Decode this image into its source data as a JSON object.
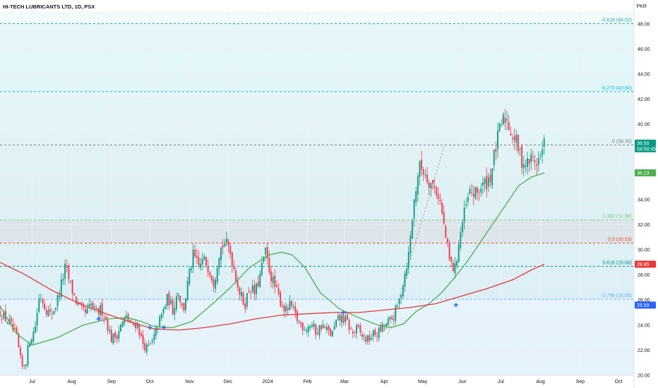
{
  "header": {
    "symbol_title": "HI-TECH LUBRICANTS LTD, 1D, PSX",
    "currency": "PKR"
  },
  "chart_data": {
    "type": "candlestick",
    "symbol": "HI-TECH LUBRICANTS LTD",
    "interval": "1D",
    "exchange": "PSX",
    "currency": "PKR",
    "ylim": [
      20,
      49
    ],
    "y_ticks": [
      "20.00",
      "22.00",
      "24.00",
      "26.00",
      "28.00",
      "30.00",
      "32.00",
      "34.00",
      "36.00",
      "38.00",
      "40.00",
      "42.00",
      "44.00",
      "46.00",
      "48.00"
    ],
    "x_ticks": [
      {
        "label": "Jul",
        "t": 0
      },
      {
        "label": "Aug",
        "t": 31
      },
      {
        "label": "Sep",
        "t": 62
      },
      {
        "label": "Oct",
        "t": 92
      },
      {
        "label": "Nov",
        "t": 123
      },
      {
        "label": "Dec",
        "t": 153
      },
      {
        "label": "2024",
        "t": 184
      },
      {
        "label": "Feb",
        "t": 215
      },
      {
        "label": "Mar",
        "t": 244
      },
      {
        "label": "Apr",
        "t": 275
      },
      {
        "label": "May",
        "t": 305
      },
      {
        "label": "Jun",
        "t": 336
      },
      {
        "label": "Jul",
        "t": 366
      },
      {
        "label": "Aug",
        "t": 397
      },
      {
        "label": "Sep",
        "t": 428
      },
      {
        "label": "Oct",
        "t": 458
      }
    ],
    "t_range": [
      -25,
      470
    ],
    "price_anchors": [
      [
        -25,
        25.0
      ],
      [
        -18,
        24.2
      ],
      [
        -12,
        23.0
      ],
      [
        -8,
        20.6
      ],
      [
        -5,
        21.0
      ],
      [
        -2,
        22.8
      ],
      [
        2,
        23.6
      ],
      [
        6,
        26.5
      ],
      [
        10,
        25.5
      ],
      [
        14,
        24.8
      ],
      [
        18,
        25.4
      ],
      [
        22,
        26.9
      ],
      [
        26,
        28.6
      ],
      [
        30,
        27.2
      ],
      [
        34,
        26.0
      ],
      [
        38,
        25.2
      ],
      [
        42,
        24.9
      ],
      [
        46,
        25.6
      ],
      [
        50,
        24.9
      ],
      [
        54,
        25.3
      ],
      [
        58,
        24.4
      ],
      [
        62,
        22.9
      ],
      [
        66,
        23.2
      ],
      [
        70,
        24.1
      ],
      [
        74,
        24.6
      ],
      [
        78,
        23.9
      ],
      [
        82,
        24.2
      ],
      [
        86,
        22.6
      ],
      [
        90,
        22.1
      ],
      [
        94,
        22.6
      ],
      [
        98,
        23.9
      ],
      [
        102,
        25.0
      ],
      [
        106,
        26.2
      ],
      [
        110,
        25.2
      ],
      [
        114,
        26.8
      ],
      [
        118,
        25.0
      ],
      [
        122,
        27.6
      ],
      [
        126,
        29.6
      ],
      [
        130,
        28.6
      ],
      [
        134,
        29.2
      ],
      [
        138,
        28.6
      ],
      [
        142,
        27.4
      ],
      [
        146,
        29.8
      ],
      [
        150,
        30.6
      ],
      [
        154,
        30.1
      ],
      [
        158,
        28.4
      ],
      [
        162,
        26.6
      ],
      [
        166,
        25.6
      ],
      [
        170,
        27.1
      ],
      [
        174,
        26.5
      ],
      [
        178,
        27.9
      ],
      [
        182,
        29.9
      ],
      [
        186,
        28.1
      ],
      [
        190,
        26.9
      ],
      [
        194,
        25.9
      ],
      [
        198,
        25.1
      ],
      [
        202,
        25.6
      ],
      [
        206,
        24.6
      ],
      [
        210,
        24.0
      ],
      [
        214,
        23.8
      ],
      [
        218,
        24.1
      ],
      [
        222,
        23.4
      ],
      [
        226,
        24.0
      ],
      [
        230,
        23.6
      ],
      [
        234,
        23.2
      ],
      [
        238,
        24.3
      ],
      [
        242,
        24.6
      ],
      [
        246,
        24.2
      ],
      [
        250,
        23.3
      ],
      [
        254,
        23.7
      ],
      [
        258,
        23.1
      ],
      [
        262,
        22.8
      ],
      [
        266,
        23.2
      ],
      [
        270,
        23.4
      ],
      [
        274,
        23.8
      ],
      [
        278,
        24.2
      ],
      [
        282,
        24.6
      ],
      [
        286,
        25.6
      ],
      [
        290,
        27.6
      ],
      [
        294,
        29.6
      ],
      [
        298,
        33.6
      ],
      [
        302,
        36.6
      ],
      [
        306,
        36.3
      ],
      [
        310,
        35.5
      ],
      [
        314,
        35.0
      ],
      [
        318,
        34.2
      ],
      [
        322,
        31.6
      ],
      [
        326,
        29.1
      ],
      [
        330,
        28.3
      ],
      [
        334,
        31.1
      ],
      [
        338,
        33.1
      ],
      [
        342,
        34.6
      ],
      [
        346,
        34.4
      ],
      [
        350,
        34.9
      ],
      [
        354,
        35.3
      ],
      [
        358,
        35.9
      ],
      [
        362,
        38.1
      ],
      [
        366,
        39.9
      ],
      [
        370,
        40.6
      ],
      [
        374,
        39.4
      ],
      [
        378,
        38.6
      ],
      [
        382,
        37.2
      ],
      [
        386,
        36.8
      ],
      [
        390,
        37.3
      ],
      [
        394,
        37.0
      ],
      [
        398,
        37.6
      ],
      [
        400,
        38.5
      ]
    ],
    "moving_averages": [
      {
        "color": "#4caf50",
        "points": [
          [
            -25,
            25.5
          ],
          [
            -12,
            23.3
          ],
          [
            0,
            22.4
          ],
          [
            20,
            23.0
          ],
          [
            40,
            24.0
          ],
          [
            60,
            24.5
          ],
          [
            75,
            24.6
          ],
          [
            85,
            24.3
          ],
          [
            95,
            23.9
          ],
          [
            110,
            23.8
          ],
          [
            125,
            24.3
          ],
          [
            140,
            25.6
          ],
          [
            155,
            27.0
          ],
          [
            170,
            28.6
          ],
          [
            185,
            29.6
          ],
          [
            195,
            29.8
          ],
          [
            203,
            29.6
          ],
          [
            213,
            28.6
          ],
          [
            225,
            26.6
          ],
          [
            240,
            25.3
          ],
          [
            255,
            24.6
          ],
          [
            270,
            24.0
          ],
          [
            280,
            23.8
          ],
          [
            290,
            24.1
          ],
          [
            300,
            25.1
          ],
          [
            310,
            25.7
          ],
          [
            320,
            26.6
          ],
          [
            330,
            27.8
          ],
          [
            340,
            29.1
          ],
          [
            350,
            30.6
          ],
          [
            360,
            32.1
          ],
          [
            370,
            33.6
          ],
          [
            380,
            35.1
          ],
          [
            390,
            35.8
          ],
          [
            400,
            36.13
          ]
        ]
      },
      {
        "color": "#e53935",
        "points": [
          [
            -25,
            29.0
          ],
          [
            -5,
            28.0
          ],
          [
            15,
            26.8
          ],
          [
            35,
            25.8
          ],
          [
            55,
            25.0
          ],
          [
            75,
            24.3
          ],
          [
            95,
            23.7
          ],
          [
            115,
            23.6
          ],
          [
            135,
            23.8
          ],
          [
            155,
            24.1
          ],
          [
            175,
            24.5
          ],
          [
            195,
            24.8
          ],
          [
            215,
            24.9
          ],
          [
            235,
            25.0
          ],
          [
            255,
            25.0
          ],
          [
            275,
            25.2
          ],
          [
            295,
            25.4
          ],
          [
            315,
            25.7
          ],
          [
            335,
            26.3
          ],
          [
            355,
            26.9
          ],
          [
            375,
            27.6
          ],
          [
            390,
            28.4
          ],
          [
            400,
            28.85
          ]
        ]
      }
    ],
    "markers": [
      {
        "t": 52,
        "v": 24.5
      },
      {
        "t": 92,
        "v": 23.8
      },
      {
        "t": 103,
        "v": 23.8
      },
      {
        "t": 243,
        "v": 25.0
      },
      {
        "t": 331,
        "v": 25.6
      }
    ],
    "fib_levels": [
      {
        "label": "-0.618 (48.02)",
        "value": 48.02,
        "color": "#26a69a"
      },
      {
        "label": "-0.272 (42.60)",
        "value": 42.6,
        "color": "#00bcd4"
      },
      {
        "label": "0 (38.35)",
        "value": 38.35,
        "color": "#787b86"
      },
      {
        "label": "0.382 (32.38)",
        "value": 32.38,
        "color": "#81c784"
      },
      {
        "label": "0.5 (30.53)",
        "value": 30.53,
        "color": "#f44336"
      },
      {
        "label": "0.618 (28.68)",
        "value": 28.68,
        "color": "#009688"
      },
      {
        "label": "0.786 (26.06)",
        "value": 26.06,
        "color": "#64b5f6"
      }
    ],
    "price_badges": [
      {
        "value": 38.5,
        "label": "38.50",
        "sublabel": "04:50:45",
        "color": "#089981"
      },
      {
        "value": 36.13,
        "label": "36.13",
        "sublabel": "",
        "color": "#4caf50"
      },
      {
        "value": 28.85,
        "label": "28.85",
        "sublabel": "",
        "color": "#e53935"
      },
      {
        "value": 25.59,
        "label": "25.59",
        "sublabel": "",
        "color": "#2962ff"
      }
    ],
    "trend_line": [
      [
        278,
        23.3
      ],
      [
        322,
        38.3
      ]
    ],
    "colors": {
      "up": "#089981",
      "down": "#f23645"
    }
  }
}
